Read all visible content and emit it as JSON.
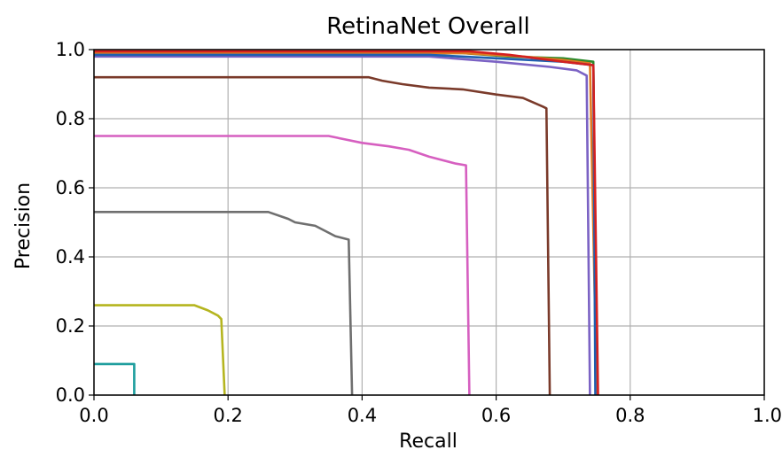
{
  "chart_data": {
    "type": "line",
    "title": "RetinaNet Overall",
    "xlabel": "Recall",
    "ylabel": "Precision",
    "xlim": [
      0.0,
      1.0
    ],
    "ylim": [
      0.0,
      1.0
    ],
    "x_ticks": [
      "0.0",
      "0.2",
      "0.4",
      "0.6",
      "0.8",
      "1.0"
    ],
    "y_ticks": [
      "0.0",
      "0.2",
      "0.4",
      "0.6",
      "0.8",
      "1.0"
    ],
    "grid": true,
    "legend": "none",
    "series": [
      {
        "color": "#1f9e9e",
        "points": [
          [
            0.0,
            0.09
          ],
          [
            0.06,
            0.09
          ],
          [
            0.06,
            0.0
          ]
        ]
      },
      {
        "color": "#b5b51f",
        "points": [
          [
            0.0,
            0.26
          ],
          [
            0.15,
            0.26
          ],
          [
            0.17,
            0.245
          ],
          [
            0.185,
            0.23
          ],
          [
            0.19,
            0.22
          ],
          [
            0.195,
            0.0
          ]
        ]
      },
      {
        "color": "#6f6f6f",
        "points": [
          [
            0.0,
            0.53
          ],
          [
            0.26,
            0.53
          ],
          [
            0.29,
            0.51
          ],
          [
            0.3,
            0.5
          ],
          [
            0.33,
            0.49
          ],
          [
            0.36,
            0.46
          ],
          [
            0.38,
            0.45
          ],
          [
            0.385,
            0.0
          ]
        ]
      },
      {
        "color": "#d65fc0",
        "points": [
          [
            0.0,
            0.75
          ],
          [
            0.35,
            0.75
          ],
          [
            0.4,
            0.73
          ],
          [
            0.44,
            0.72
          ],
          [
            0.47,
            0.71
          ],
          [
            0.5,
            0.69
          ],
          [
            0.54,
            0.67
          ],
          [
            0.555,
            0.665
          ],
          [
            0.56,
            0.0
          ]
        ]
      },
      {
        "color": "#7a3a2a",
        "points": [
          [
            0.0,
            0.92
          ],
          [
            0.41,
            0.92
          ],
          [
            0.43,
            0.91
          ],
          [
            0.46,
            0.9
          ],
          [
            0.5,
            0.89
          ],
          [
            0.55,
            0.885
          ],
          [
            0.6,
            0.87
          ],
          [
            0.64,
            0.86
          ],
          [
            0.67,
            0.835
          ],
          [
            0.675,
            0.83
          ],
          [
            0.68,
            0.0
          ]
        ]
      },
      {
        "color": "#7b62c4",
        "points": [
          [
            0.0,
            0.98
          ],
          [
            0.5,
            0.98
          ],
          [
            0.6,
            0.965
          ],
          [
            0.68,
            0.95
          ],
          [
            0.72,
            0.94
          ],
          [
            0.735,
            0.925
          ],
          [
            0.74,
            0.0
          ]
        ]
      },
      {
        "color": "#2a8a2a",
        "points": [
          [
            0.0,
            0.99
          ],
          [
            0.55,
            0.99
          ],
          [
            0.62,
            0.98
          ],
          [
            0.7,
            0.975
          ],
          [
            0.745,
            0.965
          ],
          [
            0.75,
            0.0
          ]
        ]
      },
      {
        "color": "#e07a20",
        "points": [
          [
            0.0,
            0.99
          ],
          [
            0.55,
            0.99
          ],
          [
            0.64,
            0.98
          ],
          [
            0.7,
            0.97
          ],
          [
            0.74,
            0.96
          ],
          [
            0.75,
            0.0
          ]
        ]
      },
      {
        "color": "#1f5fb0",
        "points": [
          [
            0.0,
            0.985
          ],
          [
            0.5,
            0.985
          ],
          [
            0.6,
            0.975
          ],
          [
            0.7,
            0.965
          ],
          [
            0.745,
            0.955
          ],
          [
            0.748,
            0.0
          ]
        ]
      },
      {
        "color": "#d42020",
        "points": [
          [
            0.0,
            0.995
          ],
          [
            0.56,
            0.995
          ],
          [
            0.62,
            0.985
          ],
          [
            0.7,
            0.965
          ],
          [
            0.745,
            0.955
          ],
          [
            0.752,
            0.0
          ]
        ]
      }
    ]
  }
}
